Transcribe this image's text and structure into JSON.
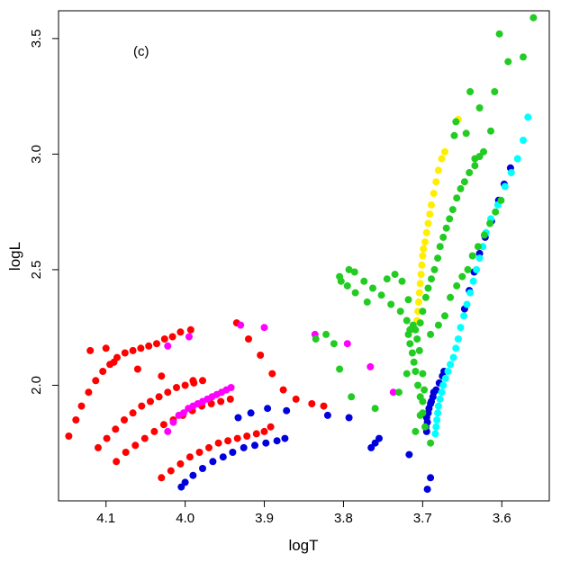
{
  "chart_data": {
    "type": "scatter",
    "panel_label": "(c)",
    "xlabel": "logT",
    "ylabel": "logL",
    "xlim": [
      4.16,
      3.54
    ],
    "ylim": [
      1.5,
      3.62
    ],
    "x_reversed": true,
    "x_ticks": [
      {
        "value": 4.1,
        "label": "4.1"
      },
      {
        "value": 4.0,
        "label": "4.0"
      },
      {
        "value": 3.9,
        "label": "3.9"
      },
      {
        "value": 3.8,
        "label": "3.8"
      },
      {
        "value": 3.7,
        "label": "3.7"
      },
      {
        "value": 3.6,
        "label": "3.6"
      }
    ],
    "y_ticks": [
      {
        "value": 2.0,
        "label": "2.0"
      },
      {
        "value": 2.5,
        "label": "2.5"
      },
      {
        "value": 3.0,
        "label": "3.0"
      },
      {
        "value": 3.5,
        "label": "3.5"
      }
    ],
    "grid": false,
    "series": [
      {
        "color": "#ff0000",
        "points": [
          [
            4.147,
            1.78
          ],
          [
            4.138,
            1.85
          ],
          [
            4.131,
            1.91
          ],
          [
            4.122,
            1.97
          ],
          [
            4.113,
            2.02
          ],
          [
            4.104,
            2.06
          ],
          [
            4.095,
            2.09
          ],
          [
            4.086,
            2.12
          ],
          [
            4.076,
            2.14
          ],
          [
            4.066,
            2.15
          ],
          [
            4.056,
            2.16
          ],
          [
            4.046,
            2.17
          ],
          [
            4.036,
            2.18
          ],
          [
            4.026,
            2.2
          ],
          [
            4.016,
            2.21
          ],
          [
            4.006,
            2.23
          ],
          [
            3.993,
            2.24
          ],
          [
            4.11,
            1.73
          ],
          [
            4.099,
            1.77
          ],
          [
            4.088,
            1.81
          ],
          [
            4.077,
            1.85
          ],
          [
            4.066,
            1.88
          ],
          [
            4.055,
            1.91
          ],
          [
            4.044,
            1.93
          ],
          [
            4.033,
            1.95
          ],
          [
            4.022,
            1.97
          ],
          [
            4.011,
            1.99
          ],
          [
            4.0,
            2.0
          ],
          [
            3.989,
            2.01
          ],
          [
            3.978,
            2.02
          ],
          [
            4.087,
            1.67
          ],
          [
            4.075,
            1.71
          ],
          [
            4.063,
            1.74
          ],
          [
            4.051,
            1.77
          ],
          [
            4.039,
            1.8
          ],
          [
            4.027,
            1.83
          ],
          [
            4.015,
            1.85
          ],
          [
            4.003,
            1.87
          ],
          [
            3.991,
            1.89
          ],
          [
            3.979,
            1.91
          ],
          [
            3.967,
            1.92
          ],
          [
            3.955,
            1.93
          ],
          [
            3.943,
            1.94
          ],
          [
            4.03,
            1.6
          ],
          [
            4.018,
            1.63
          ],
          [
            4.006,
            1.66
          ],
          [
            3.994,
            1.69
          ],
          [
            3.982,
            1.71
          ],
          [
            3.97,
            1.73
          ],
          [
            3.958,
            1.75
          ],
          [
            3.946,
            1.76
          ],
          [
            3.934,
            1.77
          ],
          [
            3.922,
            1.78
          ],
          [
            3.91,
            1.79
          ],
          [
            3.9,
            1.8
          ],
          [
            3.892,
            1.82
          ],
          [
            3.935,
            2.27
          ],
          [
            3.92,
            2.2
          ],
          [
            3.905,
            2.13
          ],
          [
            3.89,
            2.05
          ],
          [
            3.876,
            1.98
          ],
          [
            3.86,
            1.94
          ],
          [
            3.84,
            1.92
          ],
          [
            3.825,
            1.91
          ],
          [
            4.1,
            2.16
          ],
          [
            4.12,
            2.15
          ],
          [
            4.09,
            2.1
          ],
          [
            4.06,
            2.07
          ],
          [
            4.03,
            2.04
          ],
          [
            3.99,
            2.02
          ]
        ]
      },
      {
        "color": "#ff00ff",
        "points": [
          [
            4.022,
            1.8
          ],
          [
            4.015,
            1.84
          ],
          [
            4.008,
            1.87
          ],
          [
            4.002,
            1.88
          ],
          [
            3.996,
            1.9
          ],
          [
            3.99,
            1.91
          ],
          [
            3.984,
            1.92
          ],
          [
            3.978,
            1.93
          ],
          [
            3.972,
            1.94
          ],
          [
            3.966,
            1.95
          ],
          [
            3.96,
            1.96
          ],
          [
            3.954,
            1.97
          ],
          [
            3.948,
            1.98
          ],
          [
            3.942,
            1.99
          ],
          [
            4.022,
            2.17
          ],
          [
            3.995,
            2.21
          ],
          [
            3.93,
            2.26
          ],
          [
            3.9,
            2.25
          ],
          [
            3.836,
            2.22
          ],
          [
            3.795,
            2.18
          ],
          [
            3.766,
            2.08
          ],
          [
            3.737,
            1.97
          ]
        ]
      },
      {
        "color": "#0000dd",
        "points": [
          [
            4.005,
            1.56
          ],
          [
            4.0,
            1.58
          ],
          [
            3.99,
            1.61
          ],
          [
            3.978,
            1.64
          ],
          [
            3.965,
            1.67
          ],
          [
            3.952,
            1.69
          ],
          [
            3.94,
            1.71
          ],
          [
            3.926,
            1.73
          ],
          [
            3.912,
            1.74
          ],
          [
            3.898,
            1.75
          ],
          [
            3.884,
            1.76
          ],
          [
            3.874,
            1.77
          ],
          [
            3.933,
            1.86
          ],
          [
            3.917,
            1.88
          ],
          [
            3.896,
            1.9
          ],
          [
            3.872,
            1.89
          ],
          [
            3.82,
            1.87
          ],
          [
            3.793,
            1.86
          ],
          [
            3.765,
            1.73
          ],
          [
            3.76,
            1.75
          ],
          [
            3.755,
            1.77
          ],
          [
            3.717,
            1.7
          ],
          [
            3.694,
            1.55
          ],
          [
            3.69,
            1.6
          ],
          [
            3.695,
            1.8
          ],
          [
            3.694,
            1.84
          ],
          [
            3.693,
            1.88
          ],
          [
            3.69,
            1.92
          ],
          [
            3.687,
            1.95
          ],
          [
            3.683,
            1.98
          ],
          [
            3.679,
            2.01
          ],
          [
            3.675,
            2.04
          ],
          [
            3.673,
            2.06
          ],
          [
            3.696,
            1.82
          ],
          [
            3.695,
            1.86
          ],
          [
            3.692,
            1.9
          ],
          [
            3.689,
            1.93
          ],
          [
            3.686,
            1.97
          ],
          [
            3.647,
            2.33
          ],
          [
            3.641,
            2.41
          ],
          [
            3.635,
            2.49
          ],
          [
            3.628,
            2.57
          ],
          [
            3.621,
            2.64
          ],
          [
            3.613,
            2.71
          ],
          [
            3.604,
            2.8
          ],
          [
            3.597,
            2.87
          ],
          [
            3.589,
            2.94
          ]
        ]
      },
      {
        "color": "#00ffff",
        "points": [
          [
            3.684,
            1.79
          ],
          [
            3.683,
            1.82
          ],
          [
            3.682,
            1.85
          ],
          [
            3.681,
            1.88
          ],
          [
            3.68,
            1.91
          ],
          [
            3.678,
            1.94
          ],
          [
            3.676,
            1.97
          ],
          [
            3.674,
            2.0
          ],
          [
            3.671,
            2.03
          ],
          [
            3.668,
            2.06
          ],
          [
            3.665,
            2.09
          ],
          [
            3.661,
            2.12
          ],
          [
            3.658,
            2.16
          ],
          [
            3.655,
            2.2
          ],
          [
            3.652,
            2.25
          ],
          [
            3.648,
            2.3
          ],
          [
            3.644,
            2.35
          ],
          [
            3.64,
            2.4
          ],
          [
            3.636,
            2.45
          ],
          [
            3.632,
            2.5
          ],
          [
            3.628,
            2.55
          ],
          [
            3.624,
            2.6
          ],
          [
            3.62,
            2.66
          ],
          [
            3.614,
            2.72
          ],
          [
            3.605,
            2.78
          ],
          [
            3.596,
            2.86
          ],
          [
            3.588,
            2.92
          ],
          [
            3.58,
            2.98
          ],
          [
            3.573,
            3.06
          ],
          [
            3.567,
            3.16
          ]
        ]
      },
      {
        "color": "#ffee00",
        "points": [
          [
            3.707,
            2.28
          ],
          [
            3.706,
            2.32
          ],
          [
            3.705,
            2.36
          ],
          [
            3.704,
            2.4
          ],
          [
            3.703,
            2.44
          ],
          [
            3.702,
            2.48
          ],
          [
            3.701,
            2.52
          ],
          [
            3.7,
            2.56
          ],
          [
            3.699,
            2.59
          ],
          [
            3.697,
            2.62
          ],
          [
            3.695,
            2.66
          ],
          [
            3.693,
            2.7
          ],
          [
            3.691,
            2.74
          ],
          [
            3.689,
            2.78
          ],
          [
            3.686,
            2.83
          ],
          [
            3.683,
            2.88
          ],
          [
            3.68,
            2.93
          ],
          [
            3.676,
            2.98
          ],
          [
            3.672,
            3.01
          ],
          [
            3.655,
            3.15
          ]
        ]
      },
      {
        "color": "#22cc22",
        "points": [
          [
            3.56,
            3.59
          ],
          [
            3.573,
            3.42
          ],
          [
            3.592,
            3.4
          ],
          [
            3.603,
            3.52
          ],
          [
            3.609,
            3.27
          ],
          [
            3.628,
            3.2
          ],
          [
            3.64,
            3.27
          ],
          [
            3.658,
            3.14
          ],
          [
            3.66,
            3.08
          ],
          [
            3.614,
            3.1
          ],
          [
            3.623,
            3.01
          ],
          [
            3.634,
            2.98
          ],
          [
            3.645,
            3.09
          ],
          [
            3.69,
            1.75
          ],
          [
            3.697,
            1.82
          ],
          [
            3.7,
            1.88
          ],
          [
            3.703,
            1.95
          ],
          [
            3.706,
            2.0
          ],
          [
            3.709,
            2.06
          ],
          [
            3.711,
            2.1
          ],
          [
            3.713,
            2.14
          ],
          [
            3.716,
            2.18
          ],
          [
            3.718,
            2.22
          ],
          [
            3.712,
            2.26
          ],
          [
            3.709,
            2.24
          ],
          [
            3.703,
            2.27
          ],
          [
            3.7,
            2.32
          ],
          [
            3.696,
            2.38
          ],
          [
            3.693,
            2.42
          ],
          [
            3.689,
            2.46
          ],
          [
            3.685,
            2.5
          ],
          [
            3.681,
            2.55
          ],
          [
            3.678,
            2.6
          ],
          [
            3.674,
            2.64
          ],
          [
            3.67,
            2.68
          ],
          [
            3.666,
            2.72
          ],
          [
            3.662,
            2.76
          ],
          [
            3.657,
            2.81
          ],
          [
            3.652,
            2.85
          ],
          [
            3.647,
            2.88
          ],
          [
            3.641,
            2.92
          ],
          [
            3.634,
            2.95
          ],
          [
            3.628,
            2.99
          ],
          [
            3.72,
            2.28
          ],
          [
            3.728,
            2.32
          ],
          [
            3.74,
            2.35
          ],
          [
            3.752,
            2.39
          ],
          [
            3.763,
            2.42
          ],
          [
            3.774,
            2.45
          ],
          [
            3.786,
            2.49
          ],
          [
            3.793,
            2.5
          ],
          [
            3.805,
            2.47
          ],
          [
            3.803,
            2.45
          ],
          [
            3.795,
            2.43
          ],
          [
            3.785,
            2.4
          ],
          [
            3.77,
            2.36
          ],
          [
            3.745,
            2.46
          ],
          [
            3.735,
            2.48
          ],
          [
            3.726,
            2.45
          ],
          [
            3.718,
            2.37
          ],
          [
            3.716,
            2.24
          ],
          [
            3.709,
            1.8
          ],
          [
            3.703,
            1.87
          ],
          [
            3.7,
            1.93
          ],
          [
            3.698,
            1.98
          ],
          [
            3.7,
            2.05
          ],
          [
            3.704,
            2.15
          ],
          [
            3.707,
            2.2
          ],
          [
            3.79,
            1.95
          ],
          [
            3.805,
            2.07
          ],
          [
            3.812,
            2.18
          ],
          [
            3.822,
            2.22
          ],
          [
            3.835,
            2.2
          ],
          [
            3.76,
            1.9
          ],
          [
            3.73,
            1.97
          ],
          [
            3.72,
            2.05
          ],
          [
            3.69,
            2.22
          ],
          [
            3.68,
            2.26
          ],
          [
            3.672,
            2.3
          ],
          [
            3.665,
            2.38
          ],
          [
            3.657,
            2.43
          ],
          [
            3.65,
            2.47
          ],
          [
            3.643,
            2.5
          ],
          [
            3.637,
            2.56
          ],
          [
            3.63,
            2.6
          ],
          [
            3.622,
            2.65
          ],
          [
            3.615,
            2.7
          ],
          [
            3.608,
            2.75
          ],
          [
            3.601,
            2.8
          ]
        ]
      }
    ]
  }
}
